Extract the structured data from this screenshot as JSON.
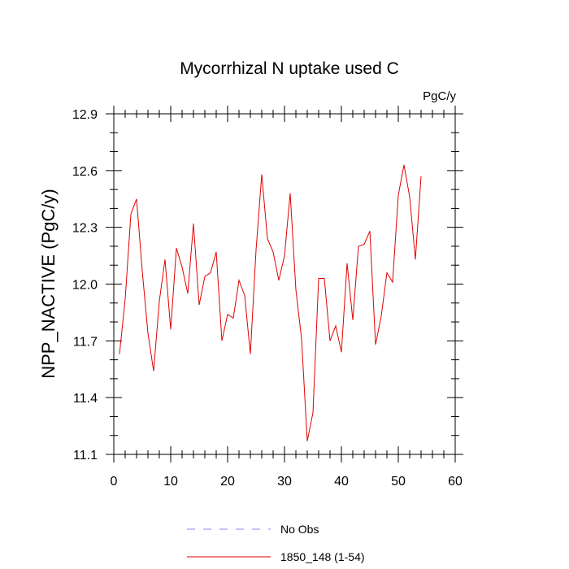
{
  "chart_data": {
    "type": "line",
    "title": "Mycorrhizal N uptake used C",
    "units_label": "PgC/y",
    "xlabel": "",
    "ylabel": "NPP_NACTIVE  (PgC/y)",
    "xlim": [
      0,
      60
    ],
    "ylim": [
      11.1,
      12.9
    ],
    "xticks": [
      0,
      10,
      20,
      30,
      40,
      50,
      60
    ],
    "yticks": [
      11.1,
      11.4,
      11.7,
      12.0,
      12.3,
      12.6,
      12.9
    ],
    "xtick_labels": [
      "0",
      "10",
      "20",
      "30",
      "40",
      "50",
      "60"
    ],
    "ytick_labels": [
      "11.1",
      "11.4",
      "11.7",
      "12.0",
      "12.3",
      "12.6",
      "12.9"
    ],
    "grid": false,
    "legend_position": "bottom-center",
    "series": [
      {
        "name": "No Obs",
        "color": "#8888ee",
        "dash": true,
        "x": [],
        "values": []
      },
      {
        "name": "1850_148 (1-54)",
        "color": "#e00000",
        "dash": false,
        "x": [
          1,
          2,
          3,
          4,
          5,
          6,
          7,
          8,
          9,
          10,
          11,
          12,
          13,
          14,
          15,
          16,
          17,
          18,
          19,
          20,
          21,
          22,
          23,
          24,
          25,
          26,
          27,
          28,
          29,
          30,
          31,
          32,
          33,
          34,
          35,
          36,
          37,
          38,
          39,
          40,
          41,
          42,
          43,
          44,
          45,
          46,
          47,
          48,
          49,
          50,
          51,
          52,
          53,
          54
        ],
        "values": [
          11.63,
          11.92,
          12.37,
          12.45,
          12.07,
          11.74,
          11.54,
          11.91,
          12.13,
          11.76,
          12.19,
          12.09,
          11.95,
          12.32,
          11.89,
          12.04,
          12.06,
          12.17,
          11.7,
          11.84,
          11.82,
          12.02,
          11.94,
          11.63,
          12.18,
          12.58,
          12.24,
          12.17,
          12.02,
          12.15,
          12.48,
          11.97,
          11.71,
          11.17,
          11.32,
          12.03,
          12.03,
          11.7,
          11.78,
          11.64,
          12.11,
          11.81,
          12.2,
          12.21,
          12.28,
          11.68,
          11.83,
          12.06,
          12.01,
          12.47,
          12.63,
          12.46,
          12.13,
          12.57
        ]
      }
    ]
  }
}
